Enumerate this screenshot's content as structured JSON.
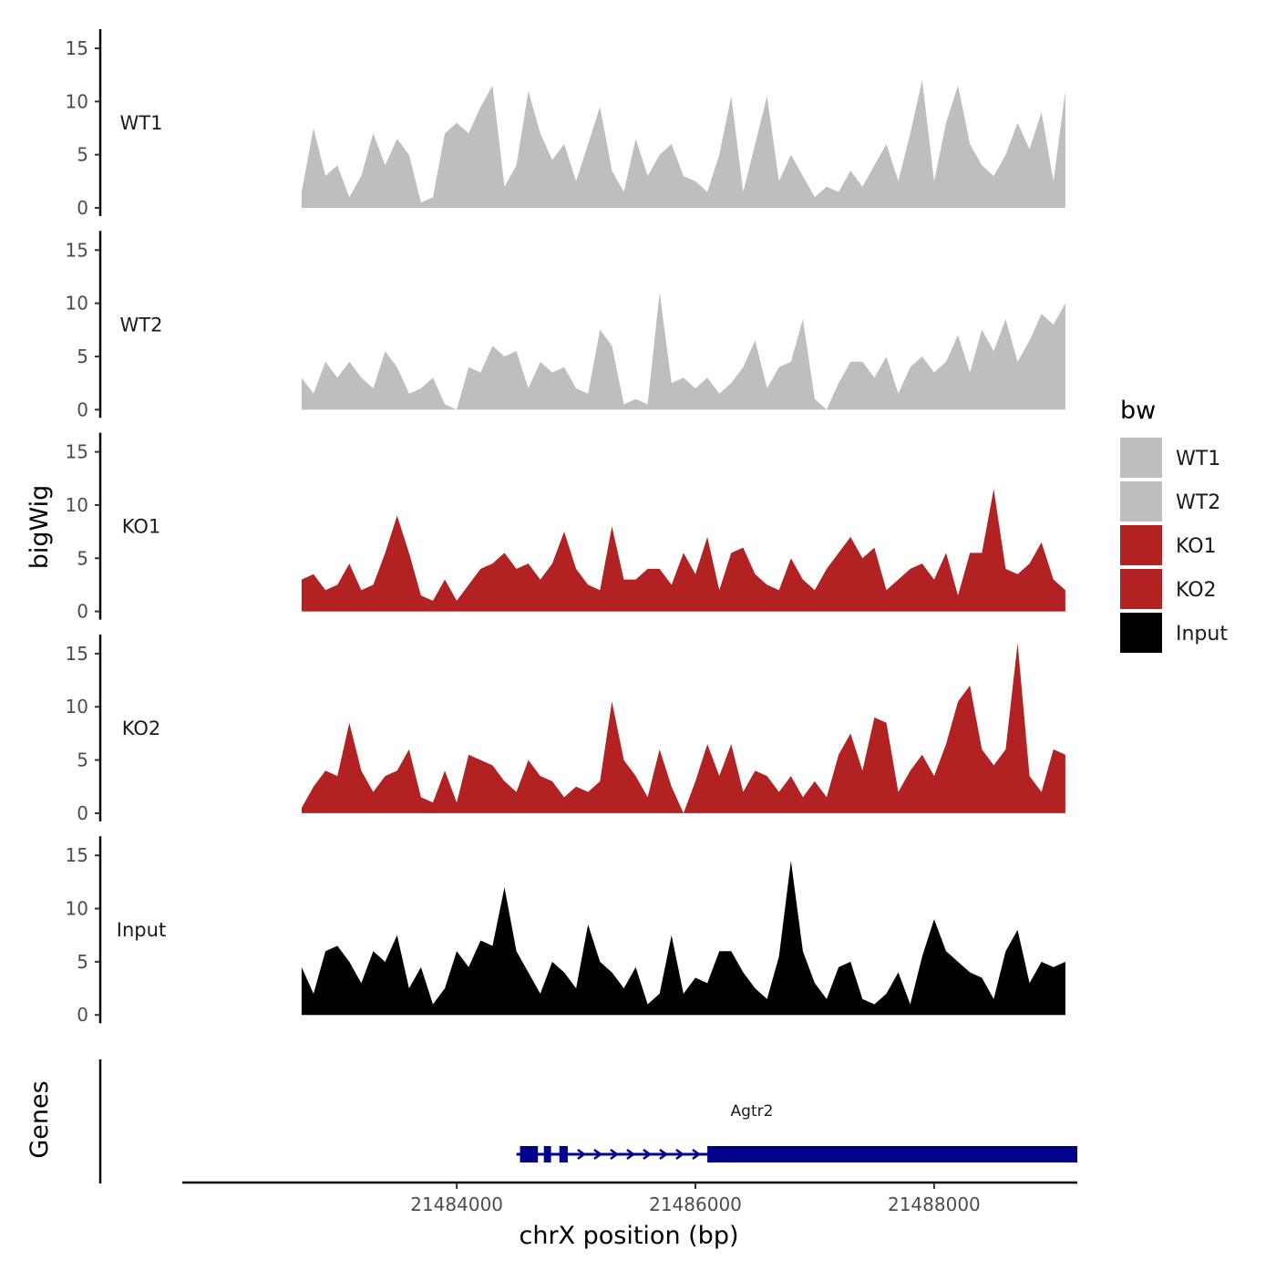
{
  "chart_data": {
    "type": "area",
    "ylabel": "bigWig",
    "genes_label": "Genes",
    "xlabel": "chrX position (bp)",
    "xlim": [
      21481700,
      21489200
    ],
    "x_ticks": [
      21484000,
      21486000,
      21488000
    ],
    "x_tick_labels": [
      "21484000",
      "21486000",
      "21488000"
    ],
    "ylim": [
      0,
      16
    ],
    "y_ticks": [
      0,
      5,
      10,
      15
    ],
    "y_tick_labels": [
      "0",
      "5",
      "10",
      "15"
    ],
    "legend": {
      "title": "bw",
      "entries": [
        {
          "label": "WT1",
          "color": "#bebebe"
        },
        {
          "label": "WT2",
          "color": "#bebebe"
        },
        {
          "label": "KO1",
          "color": "#b22222"
        },
        {
          "label": "KO2",
          "color": "#b22222"
        },
        {
          "label": "Input",
          "color": "#000000"
        }
      ]
    },
    "x": [
      21482700,
      21482800,
      21482900,
      21483000,
      21483100,
      21483200,
      21483300,
      21483400,
      21483500,
      21483600,
      21483700,
      21483800,
      21483900,
      21484000,
      21484100,
      21484200,
      21484300,
      21484400,
      21484500,
      21484600,
      21484700,
      21484800,
      21484900,
      21485000,
      21485100,
      21485200,
      21485300,
      21485400,
      21485500,
      21485600,
      21485700,
      21485800,
      21485900,
      21486000,
      21486100,
      21486200,
      21486300,
      21486400,
      21486500,
      21486600,
      21486700,
      21486800,
      21486900,
      21487000,
      21487100,
      21487200,
      21487300,
      21487400,
      21487500,
      21487600,
      21487700,
      21487800,
      21487900,
      21488000,
      21488100,
      21488200,
      21488300,
      21488400,
      21488500,
      21488600,
      21488700,
      21488800,
      21488900,
      21489000,
      21489100
    ],
    "series": [
      {
        "name": "WT1",
        "color": "#bebebe",
        "values": [
          1.5,
          7.5,
          3.0,
          4.0,
          1.0,
          3.0,
          7.0,
          4.0,
          6.5,
          5.0,
          0.5,
          1.0,
          7.0,
          8.0,
          7.0,
          9.5,
          11.5,
          2.0,
          4.0,
          11.0,
          7.0,
          4.5,
          6.0,
          2.5,
          6.0,
          9.5,
          3.5,
          1.5,
          6.5,
          3.0,
          5.0,
          6.0,
          3.0,
          2.5,
          1.5,
          5.0,
          10.5,
          1.5,
          6.0,
          10.5,
          2.5,
          5.0,
          3.0,
          1.0,
          2.0,
          1.5,
          3.5,
          2.0,
          4.0,
          6.0,
          2.5,
          7.0,
          12.0,
          2.5,
          8.0,
          11.5,
          6.0,
          4.0,
          3.0,
          5.0,
          8.0,
          5.5,
          9.0,
          2.5,
          11.0
        ]
      },
      {
        "name": "WT2",
        "color": "#bebebe",
        "values": [
          3.0,
          1.5,
          4.5,
          3.0,
          4.5,
          3.0,
          2.0,
          5.5,
          4.0,
          1.5,
          2.0,
          3.0,
          0.5,
          0.0,
          4.0,
          3.5,
          6.0,
          5.0,
          5.5,
          2.0,
          4.5,
          3.5,
          4.0,
          2.0,
          1.5,
          7.5,
          6.0,
          0.5,
          1.0,
          0.5,
          11.0,
          2.5,
          3.0,
          2.0,
          3.0,
          1.5,
          2.5,
          4.0,
          6.5,
          2.0,
          4.0,
          4.5,
          8.5,
          1.0,
          0.0,
          2.5,
          4.5,
          4.5,
          3.0,
          5.0,
          1.5,
          4.0,
          5.0,
          3.5,
          4.5,
          7.0,
          3.5,
          7.5,
          5.5,
          8.5,
          4.5,
          6.5,
          9.0,
          8.0,
          10.0
        ]
      },
      {
        "name": "KO1",
        "color": "#b22222",
        "values": [
          3.0,
          3.5,
          2.0,
          2.5,
          4.5,
          2.0,
          2.5,
          5.5,
          9.0,
          5.5,
          1.5,
          1.0,
          3.0,
          1.0,
          2.5,
          4.0,
          4.5,
          5.5,
          4.0,
          4.5,
          3.0,
          4.5,
          7.5,
          4.0,
          2.5,
          2.0,
          8.0,
          3.0,
          3.0,
          4.0,
          4.0,
          2.5,
          5.5,
          3.5,
          7.0,
          2.0,
          5.5,
          6.0,
          3.5,
          2.5,
          2.0,
          5.0,
          3.0,
          2.0,
          4.0,
          5.5,
          7.0,
          5.0,
          6.0,
          2.0,
          3.0,
          4.0,
          4.5,
          3.0,
          5.5,
          1.5,
          5.5,
          5.5,
          11.5,
          4.0,
          3.5,
          4.5,
          6.5,
          3.0,
          2.0
        ]
      },
      {
        "name": "KO2",
        "color": "#b22222",
        "values": [
          0.5,
          2.5,
          4.0,
          3.5,
          8.5,
          4.0,
          2.0,
          3.5,
          4.0,
          6.0,
          1.5,
          1.0,
          4.0,
          1.0,
          5.5,
          5.0,
          4.5,
          3.0,
          2.0,
          5.0,
          3.5,
          3.0,
          1.5,
          2.5,
          2.0,
          3.0,
          10.5,
          5.0,
          3.5,
          1.5,
          6.0,
          2.5,
          0.0,
          3.0,
          6.5,
          3.5,
          6.5,
          2.0,
          4.0,
          3.5,
          2.0,
          3.5,
          1.5,
          3.0,
          1.5,
          5.5,
          7.5,
          4.0,
          9.0,
          8.5,
          2.0,
          4.0,
          5.5,
          3.5,
          6.5,
          10.5,
          12.0,
          6.0,
          4.5,
          6.0,
          16.0,
          3.5,
          2.0,
          6.0,
          5.5
        ]
      },
      {
        "name": "Input",
        "color": "#000000",
        "values": [
          4.5,
          2.0,
          6.0,
          6.5,
          5.0,
          3.0,
          6.0,
          5.0,
          7.5,
          2.5,
          4.5,
          1.0,
          2.5,
          6.0,
          4.5,
          7.0,
          6.5,
          12.0,
          6.0,
          4.0,
          2.0,
          5.0,
          4.0,
          2.5,
          8.5,
          5.0,
          4.0,
          2.5,
          4.5,
          1.0,
          2.0,
          7.5,
          2.0,
          3.5,
          3.0,
          6.0,
          6.0,
          4.0,
          2.5,
          1.5,
          5.5,
          14.5,
          6.0,
          3.0,
          1.5,
          4.5,
          5.0,
          1.5,
          1.0,
          2.0,
          4.0,
          1.0,
          5.5,
          9.0,
          6.0,
          5.0,
          4.0,
          3.5,
          1.5,
          6.0,
          8.0,
          3.0,
          5.0,
          4.5,
          5.0
        ]
      }
    ],
    "genes": [
      {
        "name": "Agtr2",
        "color": "#00008b",
        "tx_start": 21484500,
        "tx_end": 21489200,
        "exons": [
          [
            21484530,
            21484680
          ],
          [
            21484730,
            21484790
          ],
          [
            21484860,
            21484930
          ],
          [
            21486100,
            21486290
          ],
          [
            21486290,
            21489200
          ]
        ]
      }
    ]
  }
}
